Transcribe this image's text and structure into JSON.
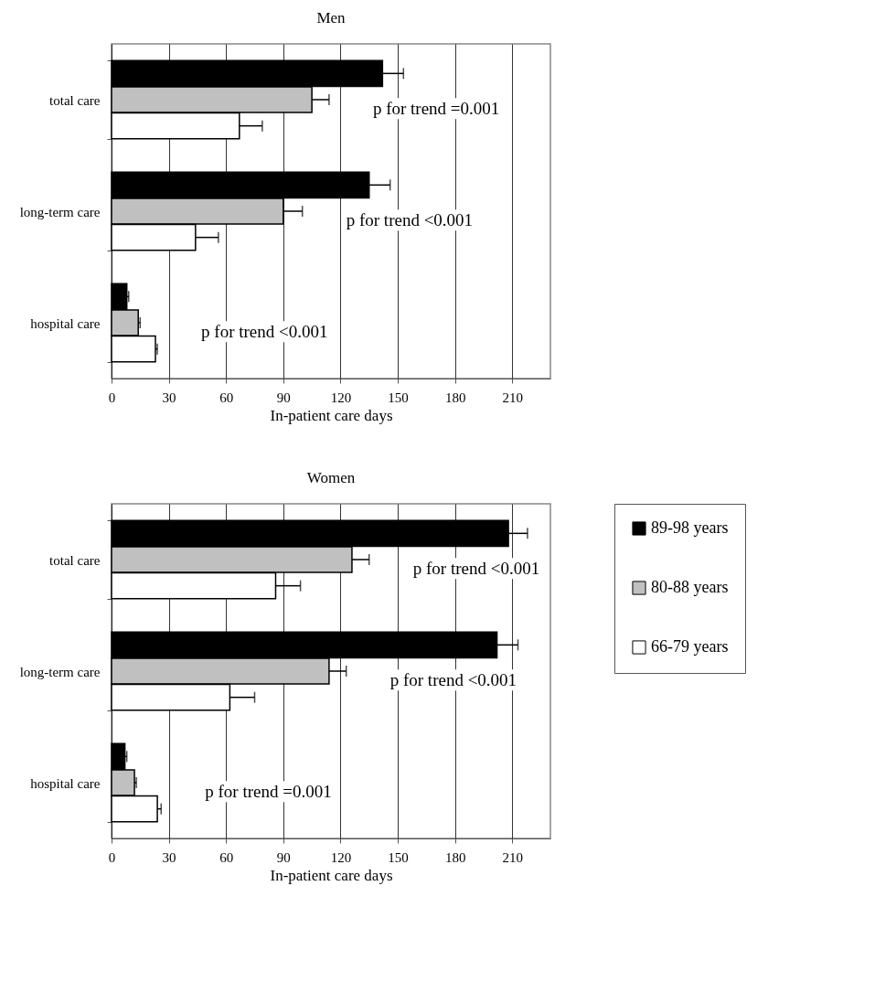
{
  "chart_data": [
    {
      "type": "bar",
      "orientation": "horizontal",
      "title": "Men",
      "xlabel": "In-patient care days",
      "categories": [
        "total care",
        "long-term care",
        "hospital care"
      ],
      "series": [
        {
          "color": "#000000",
          "values": [
            142,
            135,
            8
          ],
          "errors": [
            [
              142,
              153
            ],
            [
              135,
              146
            ],
            [
              8,
              9
            ]
          ]
        },
        {
          "color": "#c0c0c0",
          "values": [
            105,
            90,
            14
          ],
          "errors": [
            [
              105,
              114
            ],
            [
              90,
              100
            ],
            [
              14,
              15
            ]
          ]
        },
        {
          "color": "#ffffff",
          "values": [
            67,
            44,
            23
          ],
          "errors": [
            [
              67,
              79
            ],
            [
              44,
              56
            ],
            [
              23,
              24
            ]
          ]
        }
      ],
      "xlim": [
        0,
        230
      ],
      "xticks": [
        0,
        30,
        60,
        90,
        120,
        150,
        180,
        210
      ],
      "grid": "x",
      "legend": false,
      "annotations": [
        "p for trend =0.001",
        "p for trend <0.001",
        "p for trend <0.001"
      ]
    },
    {
      "type": "bar",
      "orientation": "horizontal",
      "title": "Women",
      "xlabel": "In-patient care days",
      "categories": [
        "total care",
        "long-term care",
        "hospital care"
      ],
      "series": [
        {
          "name": "89-98 years",
          "color": "#000000",
          "values": [
            208,
            202,
            7
          ],
          "errors": [
            [
              208,
              218
            ],
            [
              202,
              213
            ],
            [
              7,
              8
            ]
          ]
        },
        {
          "name": "80-88 years",
          "color": "#c0c0c0",
          "values": [
            126,
            114,
            12
          ],
          "errors": [
            [
              126,
              135
            ],
            [
              114,
              123
            ],
            [
              12,
              13
            ]
          ]
        },
        {
          "name": "66-79 years",
          "color": "#ffffff",
          "values": [
            86,
            62,
            24
          ],
          "errors": [
            [
              86,
              99
            ],
            [
              62,
              75
            ],
            [
              24,
              26
            ]
          ]
        }
      ],
      "xlim": [
        0,
        230
      ],
      "xticks": [
        0,
        30,
        60,
        90,
        120,
        150,
        180,
        210
      ],
      "grid": "x",
      "legend": "right",
      "annotations": [
        "p for trend <0.001",
        "p for trend <0.001",
        "p for trend =0.001"
      ]
    }
  ]
}
